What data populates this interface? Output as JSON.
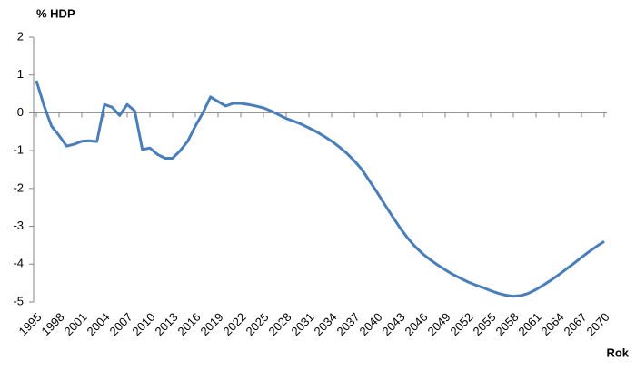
{
  "chart_data": {
    "type": "line",
    "y_label": "% HDP",
    "x_label": "Rok",
    "x": [
      1995,
      1996,
      1997,
      1998,
      1999,
      2000,
      2001,
      2002,
      2003,
      2004,
      2005,
      2006,
      2007,
      2008,
      2009,
      2010,
      2011,
      2012,
      2013,
      2014,
      2015,
      2016,
      2017,
      2018,
      2019,
      2020,
      2021,
      2022,
      2023,
      2024,
      2025,
      2026,
      2027,
      2028,
      2029,
      2030,
      2031,
      2032,
      2033,
      2034,
      2035,
      2036,
      2037,
      2038,
      2039,
      2040,
      2041,
      2042,
      2043,
      2044,
      2045,
      2046,
      2047,
      2048,
      2049,
      2050,
      2051,
      2052,
      2053,
      2054,
      2055,
      2056,
      2057,
      2058,
      2059,
      2060,
      2061,
      2062,
      2063,
      2064,
      2065,
      2066,
      2067,
      2068,
      2069,
      2070
    ],
    "series": [
      {
        "name": "% HDP",
        "color": "#4a7ebb",
        "values": [
          0.85,
          0.2,
          -0.35,
          -0.6,
          -0.88,
          -0.83,
          -0.75,
          -0.74,
          -0.76,
          0.22,
          0.15,
          -0.07,
          0.22,
          0.05,
          -0.97,
          -0.93,
          -1.1,
          -1.2,
          -1.2,
          -1.0,
          -0.75,
          -0.35,
          0.0,
          0.42,
          0.3,
          0.18,
          0.25,
          0.25,
          0.22,
          0.18,
          0.13,
          0.05,
          -0.05,
          -0.15,
          -0.22,
          -0.3,
          -0.4,
          -0.5,
          -0.62,
          -0.75,
          -0.9,
          -1.07,
          -1.27,
          -1.5,
          -1.8,
          -2.1,
          -2.42,
          -2.73,
          -3.03,
          -3.3,
          -3.53,
          -3.72,
          -3.88,
          -4.02,
          -4.15,
          -4.27,
          -4.37,
          -4.47,
          -4.55,
          -4.62,
          -4.7,
          -4.77,
          -4.82,
          -4.85,
          -4.83,
          -4.77,
          -4.67,
          -4.55,
          -4.42,
          -4.28,
          -4.13,
          -3.98,
          -3.82,
          -3.67,
          -3.53,
          -3.4
        ]
      }
    ],
    "xlim": [
      1995,
      2070
    ],
    "xticks": [
      1995,
      1998,
      2001,
      2004,
      2007,
      2010,
      2013,
      2016,
      2019,
      2022,
      2025,
      2028,
      2031,
      2034,
      2037,
      2040,
      2043,
      2046,
      2049,
      2052,
      2055,
      2058,
      2061,
      2064,
      2067,
      2070
    ],
    "ylim": [
      -5,
      2
    ],
    "yticks": [
      -5,
      -4,
      -3,
      -2,
      -1,
      0,
      1,
      2
    ],
    "grid": false
  }
}
